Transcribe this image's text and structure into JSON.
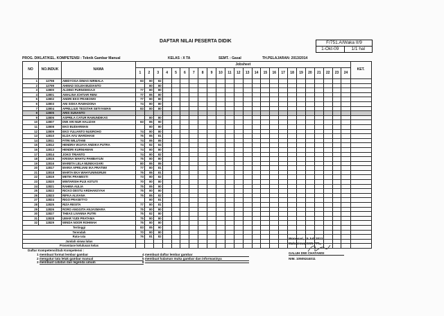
{
  "title": "DAFTAR NILAI PESERTA DIDIK",
  "form": {
    "code": "F/751.A/Waka II/9",
    "date": "1-Okt-09",
    "page": "1/1 hal"
  },
  "meta": {
    "prog": "PROG. DIKLAT/KEL. KOMPETENSI : Teknik Gambar Manual",
    "kelas": "KELAS    : X TA",
    "semt": "SEMT.    : Gasal",
    "th": "TH.PELAJARAN: 2013/2014"
  },
  "headers": {
    "no": "NO",
    "induk": "NO.INDUK",
    "nama": "NAMA",
    "jobsheet": "Jobsheet",
    "ket": "KET.",
    "jobs": [
      "1",
      "2",
      "3",
      "4",
      "5",
      "6",
      "7",
      "8",
      "9",
      "10",
      "11",
      "12",
      "13",
      "14",
      "15",
      "16",
      "17",
      "18",
      "19",
      "20",
      "21",
      "22",
      "23",
      "24"
    ]
  },
  "rows": [
    [
      "1",
      "12798",
      "ABIDYOGA DIMAS NIRMALA",
      [
        "83",
        "80",
        "82"
      ]
    ],
    [
      "2",
      "12799",
      "AHMAD SOLEH BUDIANTO",
      [
        "",
        "80",
        "80"
      ]
    ],
    [
      "3",
      "12800",
      "ALDINO PURNOMOAJI",
      [
        "77",
        "80",
        "80"
      ]
    ],
    [
      "4",
      "12801",
      "AMALINA ICHTIAR RENI",
      [
        "77",
        "85",
        "80"
      ]
    ],
    [
      "5",
      "12802",
      "ANDRI EKO PRABOWO",
      [
        "77",
        "80",
        "80"
      ]
    ],
    [
      "6",
      "12803",
      "ANI SISKA RAMADONA",
      [
        "74",
        "80",
        "80"
      ]
    ],
    [
      "7",
      "12804",
      "APRILLIUS TESSTAR SETIYAWAN",
      [
        "83",
        "80",
        "80"
      ]
    ],
    [
      "8",
      "12805",
      "ARIS SUNANTO",
      [
        "",
        "",
        ""
      ]
    ],
    [
      "9",
      "12806",
      "ASPRILA CATUR RAMUNDIKAS",
      [
        "",
        "80",
        "80"
      ]
    ],
    [
      "10",
      "12807",
      "DWI ARI NUR HALIZAH",
      [
        "83",
        "85",
        "90"
      ]
    ],
    [
      "11",
      "12808",
      "EKO BUDIARMAN",
      [
        "",
        "80",
        "80"
      ]
    ],
    [
      "12",
      "12809",
      "EKO YULIANTO NUGROHO",
      [
        "74",
        "80",
        "80"
      ]
    ],
    [
      "13",
      "12810",
      "ELDA AYU WARDHANI",
      [
        "76",
        "85",
        "81"
      ]
    ],
    [
      "14",
      "12811",
      "FITRI WILUTAMI",
      [
        "74",
        "85",
        "85"
      ]
    ],
    [
      "15",
      "12812",
      "HENDRA WIJAYA ANDIKA PUTRA",
      [
        "74",
        "82",
        "84"
      ]
    ],
    [
      "16",
      "12813",
      "HENDRI KURNIAWAN",
      [
        "74",
        "80",
        "80"
      ]
    ],
    [
      "17",
      "12814",
      "JOKO TRIANTO",
      [
        "74",
        "80",
        "82"
      ]
    ],
    [
      "18",
      "12815",
      "KRISNA WAHYU PAMBAYUN",
      [
        "75",
        "80",
        "80"
      ]
    ],
    [
      "19",
      "12816",
      "MARETA LELA MUNIKASARI",
      [
        "80",
        "85",
        "85"
      ]
    ],
    [
      "20",
      "12817",
      "MARIA APRILIANI IKA PRATIWI",
      [
        "77",
        "80",
        "81"
      ]
    ],
    [
      "21",
      "12818",
      "MARTA EKA WAHYUNINGRUM",
      [
        "75",
        "85",
        "81"
      ]
    ],
    [
      "22",
      "12819",
      "METIK PRAMESTI",
      [
        "73",
        "80",
        "82"
      ]
    ],
    [
      "23",
      "12820",
      "MINTARSIH PUJI ASTUTI",
      [
        "70",
        "80",
        "80"
      ]
    ],
    [
      "24",
      "12821",
      "RAHMA AULIA",
      [
        "75",
        "85",
        "80"
      ]
    ],
    [
      "25",
      "12822",
      "RICKO DESTU ARDHANSYAH",
      [
        "75",
        "80",
        "80"
      ]
    ],
    [
      "26",
      "12823",
      "RIFKA ALVIANA",
      [
        "75",
        "85",
        "82"
      ]
    ],
    [
      "27",
      "12824",
      "RIGO PRASETYO",
      [
        "",
        "80",
        "81"
      ]
    ],
    [
      "28",
      "12825",
      "RIZA RESITA",
      [
        "77",
        "80",
        "81"
      ]
    ],
    [
      "29",
      "12826",
      "RORO ANGGITA ANJASMARA",
      [
        "75",
        "80",
        "80"
      ]
    ],
    [
      "30",
      "12827",
      "THEAS LIVANNA PUTRI",
      [
        "75",
        "82",
        "80"
      ]
    ],
    [
      "31",
      "12828",
      "UMAR YUDI PRATAMA",
      [
        "75",
        "80",
        "80"
      ]
    ],
    [
      "32",
      "12829",
      "WINDA NOOR ROHMAH",
      [
        "75",
        "80",
        "80"
      ]
    ]
  ],
  "shaded_row": "8",
  "summary": [
    [
      "Tertinggi",
      [
        "83",
        "85",
        "90"
      ]
    ],
    [
      "Terendah",
      [
        "70",
        "80",
        "80"
      ]
    ],
    [
      "Rata-rata",
      [
        "76",
        "81",
        "82"
      ]
    ],
    [
      "Jumlah siswa lulus",
      [
        "",
        "",
        ""
      ]
    ],
    [
      "Prosentase kelulusan kelas",
      [
        "",
        "",
        ""
      ]
    ]
  ],
  "competencies": {
    "heading": "Daftar Kompetensi/Sub Kompetensi :",
    "items": [
      {
        "n": "1",
        "t": "membuat format lembar gambar"
      },
      {
        "n": "2",
        "t": "mengatur tata letak gambar manual"
      },
      {
        "n": "3",
        "t": "membuat catatan dan legenda umum"
      },
      {
        "n": "4",
        "t": "membuat daftar lembar gambar"
      },
      {
        "n": "5",
        "t": "membuat halaman muka gambar dan informasinya"
      },
      {
        "n": "6",
        "t": ""
      }
    ]
  },
  "signature": {
    "place_date": "Wonosari, 15 Juli 2013",
    "role": "Mahasiswa KKN-PPL,",
    "name": "GALUH DWI CHATAMSI",
    "nim": "NIM. 10505244011"
  }
}
